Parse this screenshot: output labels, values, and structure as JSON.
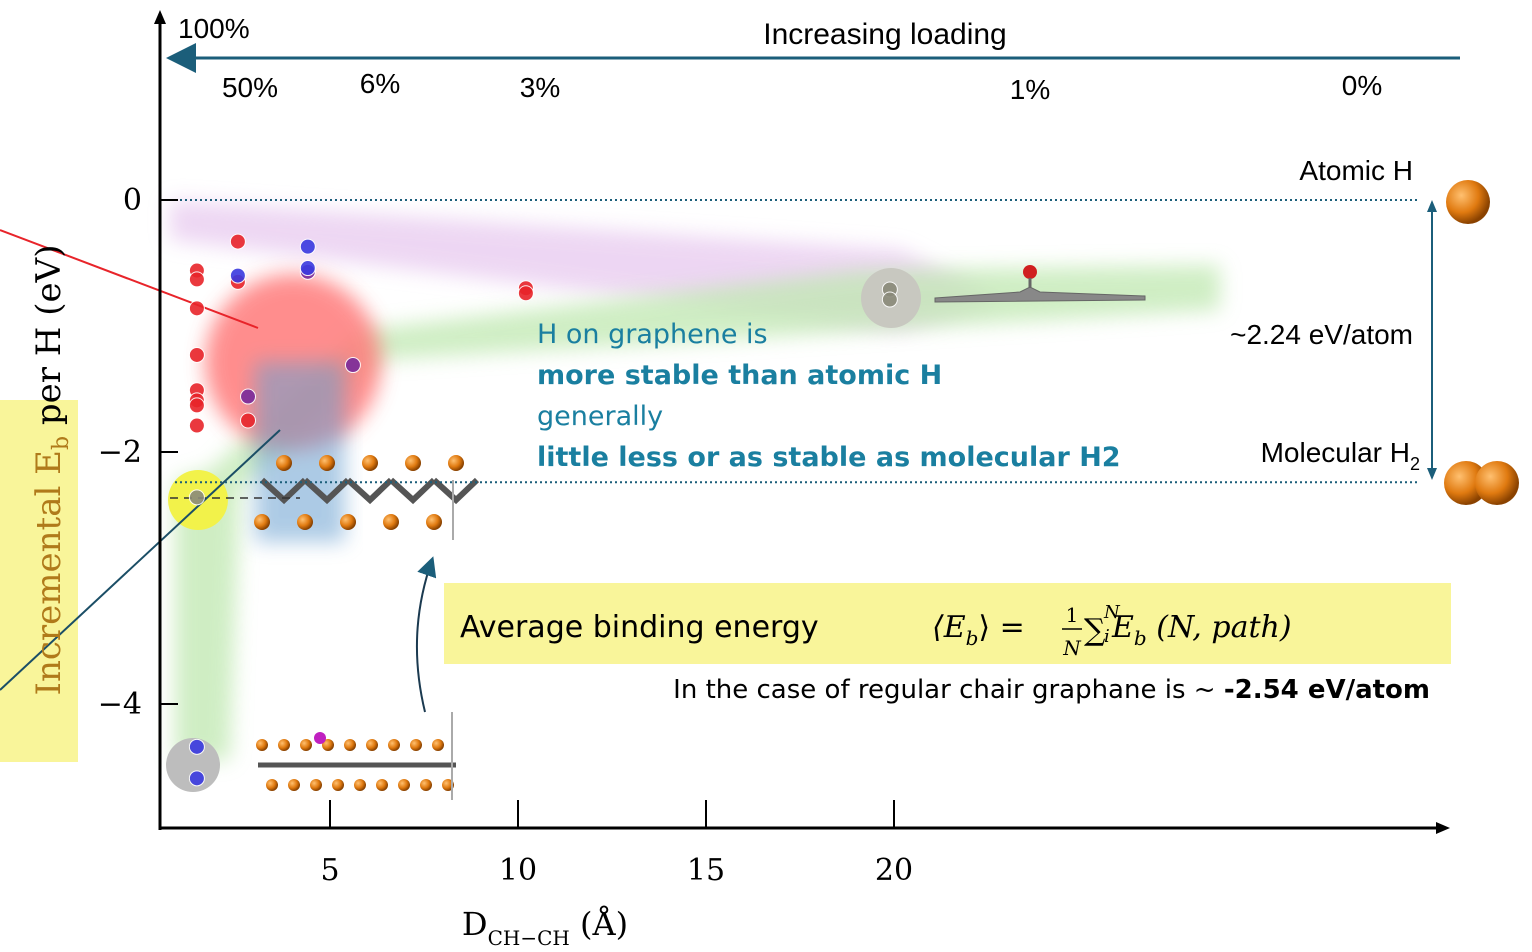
{
  "chart_data": {
    "type": "scatter",
    "x_label": {
      "text": "D",
      "sub": "CH−CH",
      "rest": " (Å)"
    },
    "y_label": {
      "text": "Incremental E",
      "sub": "b",
      "rest": " per H (eV)"
    },
    "xlim": [
      0.5,
      34.7
    ],
    "ylim": [
      -5,
      1.5
    ],
    "xticks": [
      5,
      10,
      15,
      20
    ],
    "yticks": [
      {
        "value": 0,
        "label": "0"
      },
      {
        "value": -2,
        "label": "−2"
      },
      {
        "value": -4,
        "label": "−4"
      }
    ],
    "series": [
      {
        "color": "#e8242a",
        "x": [
          1.46,
          1.46,
          1.46,
          1.46,
          1.46,
          1.46,
          1.46,
          1.46,
          2.55,
          2.55,
          2.82,
          10.21,
          10.21
        ],
        "values": [
          -0.56,
          -0.63,
          -0.86,
          -1.23,
          -1.51,
          -1.59,
          -1.63,
          -1.79,
          -0.33,
          -0.65,
          -1.75,
          -0.7,
          -0.74
        ]
      },
      {
        "color": "#7a2a9a",
        "x": [
          2.82,
          5.61,
          4.41
        ],
        "values": [
          -1.56,
          -1.31,
          -0.57
        ]
      },
      {
        "color": "#3a3ae0",
        "x": [
          2.55,
          4.41,
          4.41,
          1.46,
          1.46
        ],
        "values": [
          -0.6,
          -0.37,
          -0.54,
          -4.34,
          -4.59
        ]
      },
      {
        "color": "#8a8a7a",
        "x": [
          1.46,
          19.89,
          19.89
        ],
        "values": [
          -2.36,
          -0.71,
          -0.79
        ]
      }
    ],
    "reference_lines": [
      {
        "value": 0,
        "label": "Atomic H"
      },
      {
        "value": -2.24,
        "label": "Molecular H",
        "sub": "2"
      }
    ],
    "gap_label": "~2.24 eV/atom",
    "loading": {
      "top": "100%",
      "arrow_label": "Increasing loading",
      "levels": [
        "50%",
        "6%",
        "3%",
        "1%",
        "0%"
      ]
    },
    "message": [
      "H on graphene is",
      "more stable than  atomic H",
      "generally",
      "little less or as stable as molecular H2"
    ],
    "average": {
      "label": "Average binding energy",
      "lhs": "⟨E",
      "lhs_sub": "b",
      "eq": "⟩ = ",
      "num": "1",
      "den": "N",
      "sum": "∑",
      "sum_sub": "i",
      "sum_sup": "N",
      "term": " E",
      "term_sub": "b",
      "args": " (N, path)"
    },
    "note": {
      "text": "In the case of regular chair graphane is ~ ",
      "value": "-2.54 eV/atom"
    }
  }
}
